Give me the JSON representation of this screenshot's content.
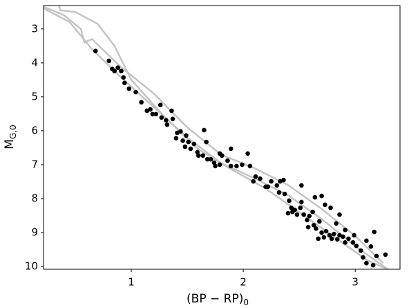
{
  "chart_data": {
    "type": "scatter",
    "xlabel": "(BP − RP)",
    "xlabel_sub": "0",
    "ylabel": "M",
    "ylabel_sub": "G,0",
    "xlim": [
      0.216,
      3.4
    ],
    "ylim": [
      10.08,
      2.31
    ],
    "y_inverted": true,
    "xticks": [
      1,
      2,
      3
    ],
    "yticks": [
      3,
      4,
      5,
      6,
      7,
      8,
      9,
      10
    ],
    "color": "#000000",
    "x": [
      0.68,
      0.8,
      0.83,
      0.85,
      0.88,
      0.91,
      0.93,
      0.94,
      0.98,
      1.04,
      1.09,
      1.14,
      1.17,
      1.19,
      1.22,
      1.26,
      1.27,
      1.32,
      1.36,
      1.37,
      1.41,
      1.44,
      1.46,
      1.48,
      1.51,
      1.53,
      1.56,
      1.59,
      1.6,
      1.64,
      1.65,
      1.67,
      1.68,
      1.71,
      1.74,
      1.75,
      1.79,
      1.81,
      1.86,
      1.89,
      1.94,
      1.99,
      2.04,
      2.06,
      2.11,
      2.15,
      2.2,
      2.25,
      2.3,
      2.33,
      2.36,
      2.32,
      2.37,
      2.41,
      2.43,
      2.46,
      2.48,
      2.51,
      2.52,
      2.54,
      2.57,
      2.59,
      2.62,
      2.63,
      2.65,
      2.68,
      2.7,
      2.72,
      2.74,
      2.77,
      2.79,
      2.81,
      2.84,
      2.86,
      2.89,
      2.91,
      2.94,
      2.98,
      3.01,
      3.05,
      3.07,
      3.1,
      3.14,
      3.17,
      3.19,
      3.27,
      2.7,
      2.78,
      2.86,
      2.64,
      2.73,
      2.83,
      2.91,
      2.52,
      2.4,
      2.44,
      2.58,
      2.67,
      3.1,
      2.99,
      3.16,
      1.31,
      1.49,
      1.4,
      1.79,
      1.89,
      2.09,
      2.22
    ],
    "y": [
      3.65,
      3.94,
      4.18,
      4.24,
      4.14,
      4.24,
      4.43,
      4.59,
      4.76,
      4.86,
      5.16,
      5.41,
      5.37,
      5.51,
      5.51,
      5.24,
      5.61,
      5.82,
      5.41,
      5.65,
      6.06,
      6.02,
      6.29,
      6.47,
      6.33,
      6.53,
      6.39,
      6.63,
      6.73,
      6.73,
      5.98,
      6.33,
      6.84,
      6.84,
      6.94,
      7.04,
      7.0,
      6.73,
      6.88,
      6.53,
      7.04,
      7.0,
      6.67,
      7.04,
      7.35,
      7.41,
      7.65,
      7.49,
      7.61,
      7.49,
      7.45,
      7.82,
      7.86,
      8.06,
      8.27,
      8.33,
      8.47,
      8.27,
      7.61,
      8.47,
      8.63,
      8.51,
      8.39,
      8.78,
      8.88,
      8.67,
      9.0,
      9.14,
      8.96,
      9.08,
      9.18,
      9.04,
      9.2,
      9.08,
      9.12,
      9.29,
      9.18,
      9.29,
      9.39,
      9.53,
      9.73,
      9.9,
      9.41,
      8.98,
      9.69,
      9.65,
      7.92,
      8.27,
      8.47,
      7.96,
      8.18,
      8.73,
      8.92,
      8.1,
      8.43,
      8.39,
      8.84,
      9.18,
      9.24,
      9.08,
      9.96,
      5.69,
      6.14,
      6.22,
      6.67,
      7.04,
      7.49,
      7.65
    ],
    "lines": [
      {
        "color": "#c4c4c4",
        "x": [
          0.22,
          0.45,
          0.65,
          0.9,
          1.2,
          1.5,
          1.8,
          2.1,
          2.4,
          2.7,
          3.0,
          3.3
        ],
        "y": [
          2.4,
          2.8,
          3.6,
          4.4,
          5.3,
          6.2,
          6.95,
          7.4,
          7.9,
          8.6,
          9.4,
          10.1
        ]
      },
      {
        "color": "#c4c4c4",
        "x": [
          0.22,
          0.4,
          0.55,
          0.58,
          0.65,
          0.9,
          1.2,
          1.5,
          1.8,
          2.1,
          2.4,
          2.7,
          3.0,
          3.25
        ],
        "y": [
          2.35,
          2.6,
          3.0,
          3.4,
          3.3,
          4.1,
          4.9,
          5.9,
          6.7,
          7.1,
          7.6,
          8.3,
          9.1,
          9.9
        ]
      },
      {
        "color": "#c4c4c4",
        "x": [
          0.35,
          0.37,
          0.5,
          0.7,
          0.85,
          1.0,
          1.3,
          1.6,
          1.9,
          2.2,
          2.5,
          2.8,
          3.1,
          3.3
        ],
        "y": [
          2.3,
          2.45,
          2.5,
          2.85,
          3.5,
          4.5,
          5.6,
          6.55,
          7.15,
          7.7,
          8.4,
          9.1,
          9.8,
          10.1
        ]
      }
    ]
  }
}
